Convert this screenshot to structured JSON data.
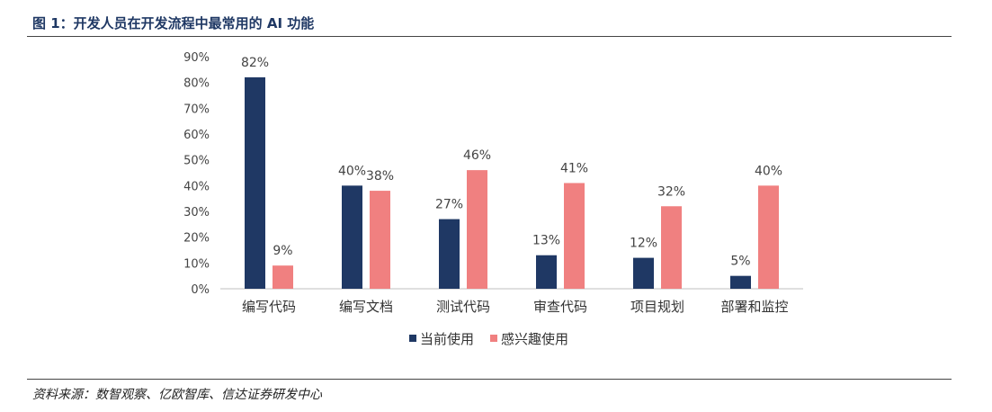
{
  "header": {
    "title": "图 1：开发人员在开发流程中最常用的 AI 功能"
  },
  "footer": {
    "source": "资料来源：数智观察、亿欧智库、信达证券研发中心"
  },
  "colors": {
    "current": "#1f3864",
    "interest": "#f08080",
    "title": "#1f3864"
  },
  "chart_data": {
    "type": "bar",
    "categories": [
      "编写代码",
      "编写文档",
      "测试代码",
      "审查代码",
      "项目规划",
      "部署和监控"
    ],
    "series": [
      {
        "name": "当前使用",
        "values": [
          82,
          40,
          27,
          13,
          12,
          5
        ],
        "labels": [
          "82%",
          "40%",
          "27%",
          "13%",
          "12%",
          "5%"
        ]
      },
      {
        "name": "感兴趣使用",
        "values": [
          9,
          38,
          46,
          41,
          32,
          40
        ],
        "labels": [
          "9%",
          "38%",
          "46%",
          "41%",
          "32%",
          "40%"
        ]
      }
    ],
    "y_ticks": [
      "0%",
      "10%",
      "20%",
      "30%",
      "40%",
      "50%",
      "60%",
      "70%",
      "80%",
      "90%"
    ],
    "ylim": [
      0,
      90
    ],
    "grid": false,
    "legend": "bottom-center"
  }
}
